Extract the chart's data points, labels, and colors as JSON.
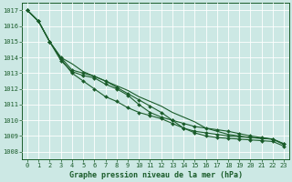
{
  "xlabel": "Graphe pression niveau de la mer (hPa)",
  "bg_color": "#cce8e4",
  "grid_color": "#b0d4cf",
  "line_color": "#1a5c2a",
  "ylim": [
    1007.5,
    1017.5
  ],
  "xlim": [
    -0.5,
    23.5
  ],
  "yticks": [
    1008,
    1009,
    1010,
    1011,
    1012,
    1013,
    1014,
    1015,
    1016,
    1017
  ],
  "xticks": [
    0,
    1,
    2,
    3,
    4,
    5,
    6,
    7,
    8,
    9,
    10,
    11,
    12,
    13,
    14,
    15,
    16,
    17,
    18,
    19,
    20,
    21,
    22,
    23
  ],
  "series": [
    {
      "y": [
        1017.0,
        1016.3,
        1015.0,
        1014.0,
        1013.6,
        1013.1,
        1012.8,
        1012.5,
        1012.2,
        1011.9,
        1011.5,
        1011.2,
        1010.9,
        1010.5,
        1010.2,
        1009.9,
        1009.5,
        1009.3,
        1009.1,
        1009.0,
        1008.9,
        1008.85,
        1008.8,
        1008.45
      ],
      "marker": false
    },
    {
      "y": [
        1017.0,
        1016.3,
        1015.0,
        1013.8,
        1013.1,
        1012.85,
        1012.7,
        1012.3,
        1012.0,
        1011.6,
        1011.0,
        1010.5,
        1010.2,
        1010.0,
        1009.8,
        1009.6,
        1009.5,
        1009.4,
        1009.3,
        1009.15,
        1009.0,
        1008.9,
        1008.8,
        1008.5
      ],
      "marker": true
    },
    {
      "y": [
        1017.0,
        1016.3,
        1015.0,
        1014.0,
        1013.2,
        1013.0,
        1012.8,
        1012.5,
        1012.1,
        1011.7,
        1011.3,
        1010.9,
        1010.5,
        1010.0,
        1009.5,
        1009.3,
        1009.2,
        1009.1,
        1009.0,
        1008.95,
        1008.9,
        1008.85,
        1008.8,
        1008.5
      ],
      "marker": true
    },
    {
      "y": [
        1017.0,
        1016.3,
        1015.0,
        1013.9,
        1013.0,
        1012.5,
        1012.0,
        1011.5,
        1011.2,
        1010.8,
        1010.5,
        1010.3,
        1010.1,
        1009.8,
        1009.5,
        1009.2,
        1009.0,
        1008.9,
        1008.85,
        1008.8,
        1008.75,
        1008.7,
        1008.65,
        1008.35
      ],
      "marker": true
    }
  ],
  "marker_symbol": "D",
  "marker_size": 2.0,
  "linewidth": 0.8,
  "tick_fontsize": 5.0,
  "label_fontsize": 6.0,
  "label_fontweight": "bold",
  "tick_color": "#1a5c2a",
  "label_color": "#1a5c2a"
}
